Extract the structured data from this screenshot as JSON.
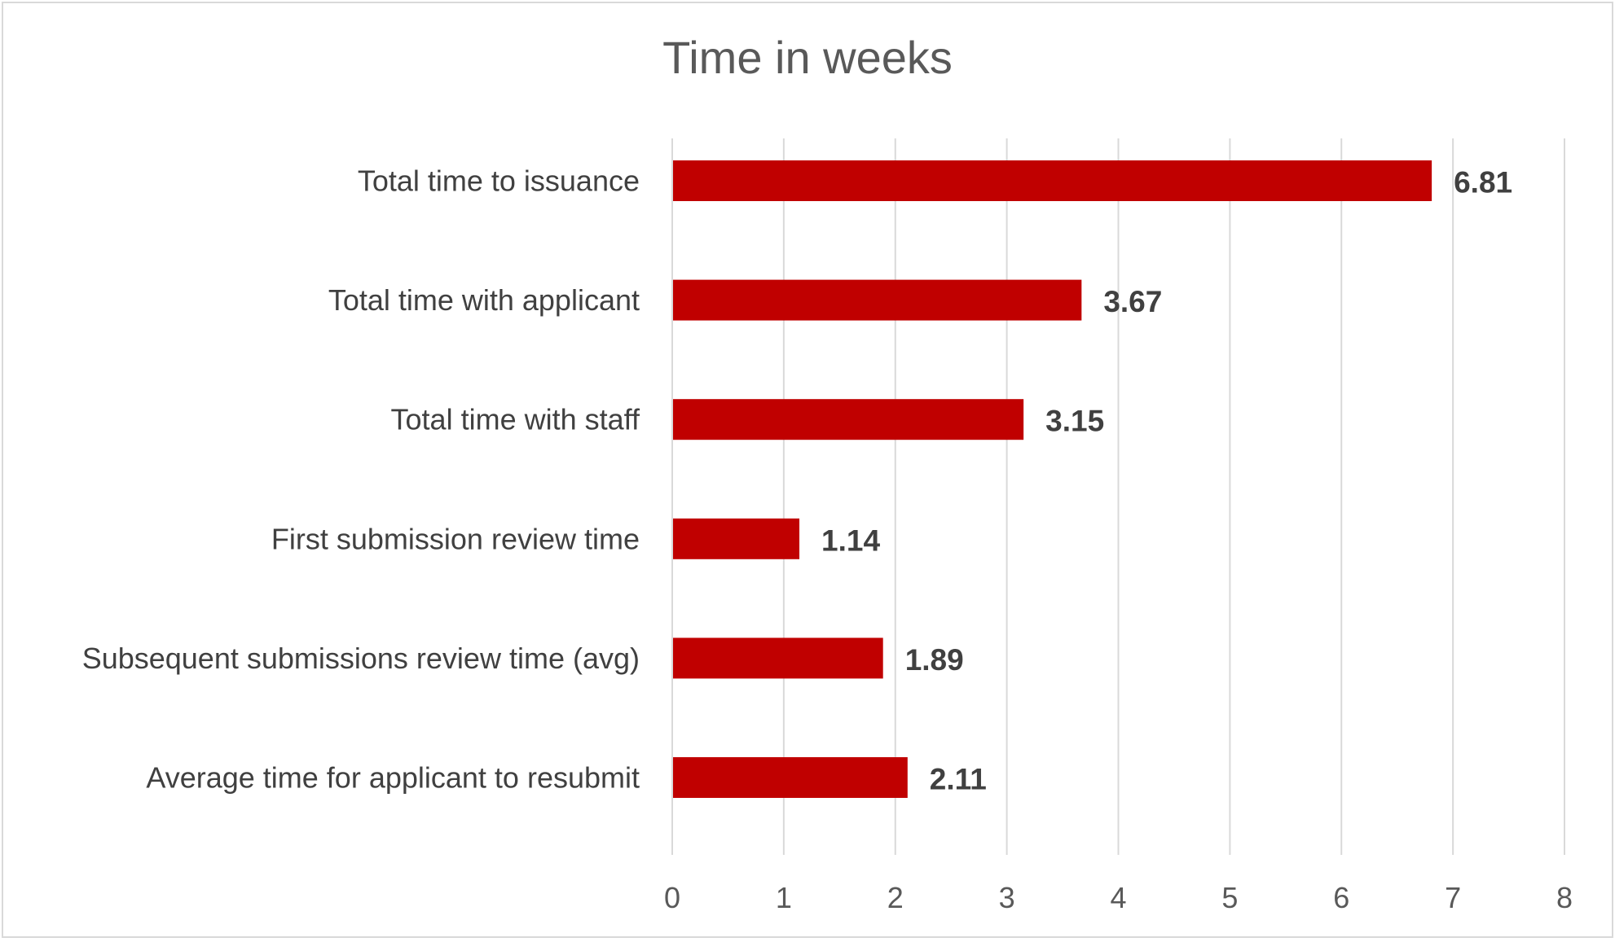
{
  "chart_data": {
    "type": "bar",
    "orientation": "horizontal",
    "title": "Time in weeks",
    "categories": [
      "Total time to issuance",
      "Total time with applicant",
      "Total time with staff",
      "First submission review time",
      "Subsequent submissions review time (avg)",
      "Average time for applicant to resubmit"
    ],
    "values": [
      6.81,
      3.67,
      3.15,
      1.14,
      1.89,
      2.11
    ],
    "data_labels": [
      "6.81",
      "3.67",
      "3.15",
      "1.14",
      "1.89",
      "2.11"
    ],
    "xlim": [
      0,
      8
    ],
    "x_ticks": [
      0,
      1,
      2,
      3,
      4,
      5,
      6,
      7,
      8
    ],
    "grid": "vertical",
    "legend": "none",
    "bar_color": "#c00000",
    "gridline_color": "#d9d9d9"
  }
}
